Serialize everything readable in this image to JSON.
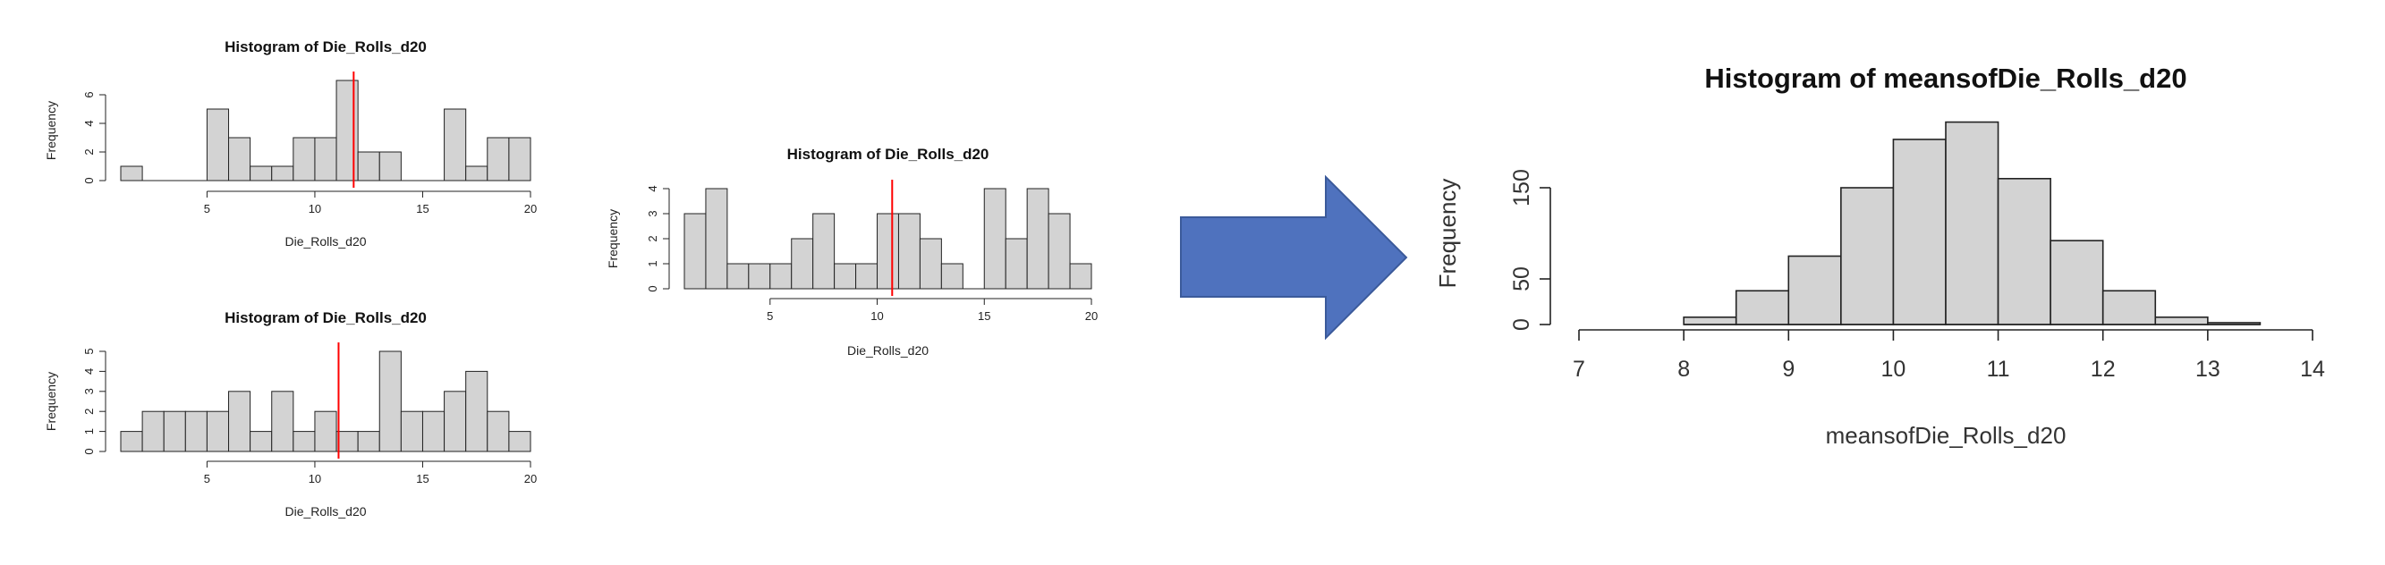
{
  "chart_data": [
    {
      "type": "bar",
      "title": "Histogram of Die_Rolls_d20",
      "xlabel": "Die_Rolls_d20",
      "ylabel": "Frequency",
      "bin_width": 1,
      "bins_start": [
        1,
        2,
        3,
        4,
        5,
        6,
        7,
        8,
        9,
        10,
        11,
        12,
        13,
        14,
        15,
        16,
        17,
        18,
        19
      ],
      "values": [
        1,
        0,
        0,
        0,
        5,
        3,
        1,
        1,
        3,
        3,
        7,
        2,
        2,
        0,
        0,
        5,
        1,
        3,
        3
      ],
      "xlim": [
        1,
        20
      ],
      "ylim": [
        0,
        7
      ],
      "xticks": [
        5,
        10,
        15,
        20
      ],
      "yticks": [
        0,
        2,
        4,
        6
      ],
      "mean_line": 11.8,
      "mean_line_color": "#ff0000",
      "bar_color": "#d3d3d3"
    },
    {
      "type": "bar",
      "title": "Histogram of Die_Rolls_d20",
      "xlabel": "Die_Rolls_d20",
      "ylabel": "Frequency",
      "bin_width": 1,
      "bins_start": [
        1,
        2,
        3,
        4,
        5,
        6,
        7,
        8,
        9,
        10,
        11,
        12,
        13,
        14,
        15,
        16,
        17,
        18,
        19
      ],
      "values": [
        1,
        2,
        2,
        2,
        2,
        3,
        1,
        3,
        1,
        2,
        1,
        1,
        5,
        2,
        2,
        3,
        4,
        2,
        1
      ],
      "xlim": [
        1,
        20
      ],
      "ylim": [
        0,
        5
      ],
      "xticks": [
        5,
        10,
        15,
        20
      ],
      "yticks": [
        0,
        1,
        2,
        3,
        4,
        5
      ],
      "mean_line": 11.1,
      "mean_line_color": "#ff0000",
      "bar_color": "#d3d3d3"
    },
    {
      "type": "bar",
      "title": "Histogram of Die_Rolls_d20",
      "xlabel": "Die_Rolls_d20",
      "ylabel": "Frequency",
      "bin_width": 1,
      "bins_start": [
        1,
        2,
        3,
        4,
        5,
        6,
        7,
        8,
        9,
        10,
        11,
        12,
        13,
        14,
        15,
        16,
        17,
        18,
        19
      ],
      "values": [
        3,
        4,
        1,
        1,
        1,
        2,
        3,
        1,
        1,
        3,
        3,
        2,
        1,
        0,
        4,
        2,
        4,
        3,
        1
      ],
      "xlim": [
        1,
        20
      ],
      "ylim": [
        0,
        4
      ],
      "xticks": [
        5,
        10,
        15,
        20
      ],
      "yticks": [
        0,
        1,
        2,
        3,
        4
      ],
      "mean_line": 10.7,
      "mean_line_color": "#ff0000",
      "bar_color": "#d3d3d3"
    },
    {
      "type": "bar",
      "title": "Histogram of meansofDie_Rolls_d20",
      "xlabel": "meansofDie_Rolls_d20",
      "ylabel": "Frequency",
      "bin_width": 0.5,
      "bins_start": [
        8,
        8.5,
        9,
        9.5,
        10,
        10.5,
        11,
        11.5,
        12,
        12.5,
        13
      ],
      "values": [
        8,
        37,
        75,
        150,
        203,
        222,
        160,
        92,
        37,
        8,
        2
      ],
      "xlim": [
        7,
        14
      ],
      "ylim": [
        0,
        200
      ],
      "xticks": [
        7,
        8,
        9,
        10,
        11,
        12,
        13,
        14
      ],
      "yticks": [
        0,
        50,
        150
      ],
      "bar_color": "#d3d3d3"
    }
  ],
  "arrow": {
    "color": "#4f72be",
    "stroke": "#3b5a9a",
    "icon": "right-arrow-icon"
  }
}
